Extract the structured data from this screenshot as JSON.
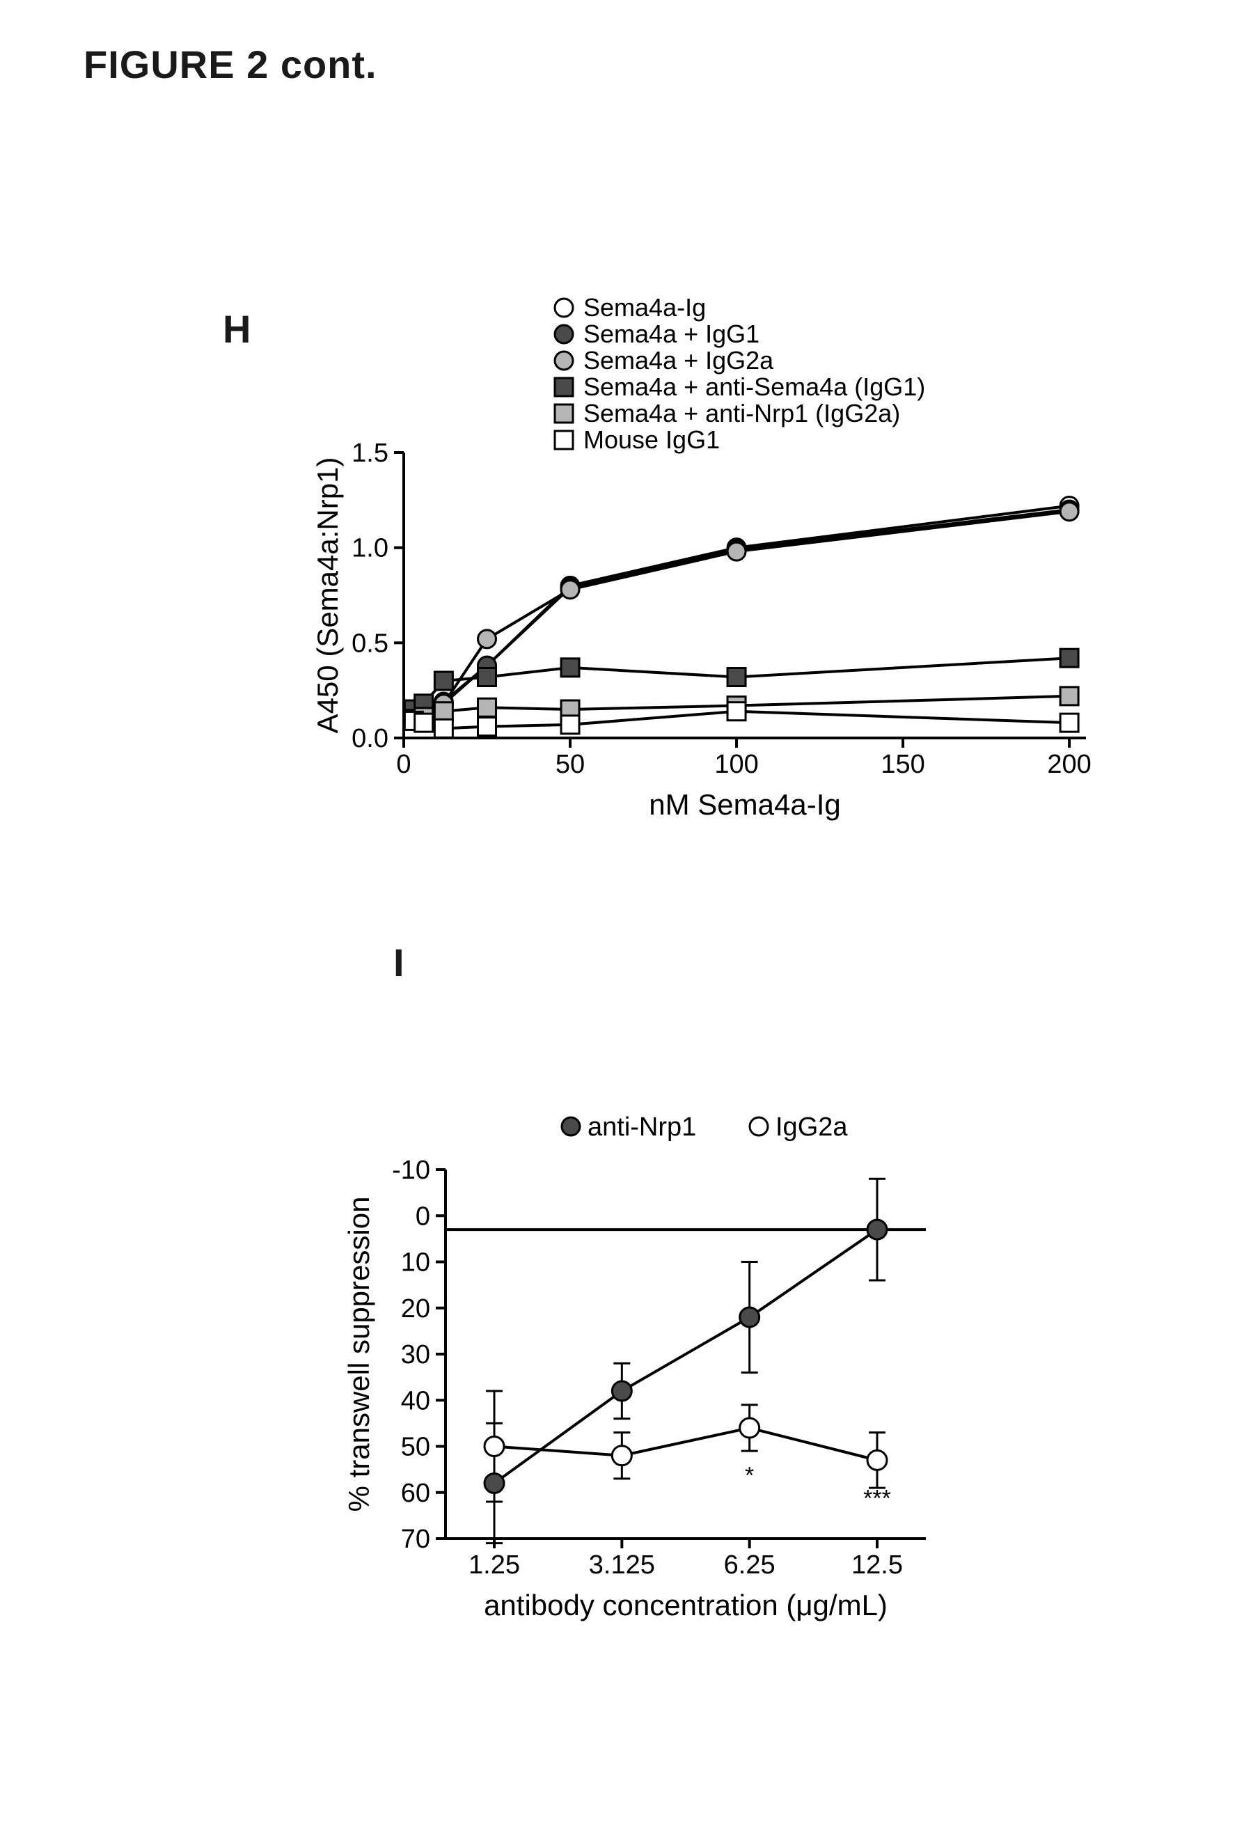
{
  "title": "FIGURE 2 cont.",
  "panelH": {
    "letter": "H",
    "ylabel": "A450 (Sema4a:Nrp1)",
    "xlabel": "nM Sema4a-Ig",
    "xlim": [
      0,
      205
    ],
    "ylim": [
      0,
      1.5
    ],
    "xticks": [
      0,
      50,
      100,
      150,
      200
    ],
    "yticks": [
      0.0,
      0.5,
      1.0,
      1.5
    ],
    "ytick_labels": [
      "0.0",
      "0.5",
      "1.0",
      "1.5"
    ],
    "axis_color": "#000000",
    "line_width": 4,
    "marker_size": 13,
    "font_size_axis": 38,
    "font_size_label": 42,
    "font_size_legend": 36,
    "x_values": [
      3,
      6,
      12,
      25,
      50,
      100,
      200
    ],
    "legend": [
      {
        "label": "Sema4a-Ig",
        "marker": "circle",
        "fill": "#ffffff",
        "stroke": "#000000"
      },
      {
        "label": "Sema4a + IgG1",
        "marker": "circle",
        "fill": "#4a4a4a",
        "stroke": "#000000"
      },
      {
        "label": "Sema4a + IgG2a",
        "marker": "circle",
        "fill": "#b5b5b5",
        "stroke": "#000000"
      },
      {
        "label": "Sema4a + anti-Sema4a (IgG1)",
        "marker": "square",
        "fill": "#4a4a4a",
        "stroke": "#000000"
      },
      {
        "label": "Sema4a + anti-Nrp1  (IgG2a)",
        "marker": "square",
        "fill": "#b5b5b5",
        "stroke": "#000000"
      },
      {
        "label": "Mouse IgG1",
        "marker": "square",
        "fill": "#ffffff",
        "stroke": "#000000"
      }
    ],
    "series": [
      {
        "name": "Sema4a-Ig",
        "marker": "circle",
        "fill": "#ffffff",
        "stroke": "#000000",
        "y": [
          0.1,
          0.12,
          0.18,
          0.38,
          0.8,
          1.0,
          1.22
        ]
      },
      {
        "name": "Sema4a+IgG1",
        "marker": "circle",
        "fill": "#4a4a4a",
        "stroke": "#000000",
        "y": [
          0.1,
          0.13,
          0.19,
          0.38,
          0.79,
          0.99,
          1.2
        ]
      },
      {
        "name": "Sema4a+IgG2a",
        "marker": "circle",
        "fill": "#b5b5b5",
        "stroke": "#000000",
        "y": [
          0.09,
          0.12,
          0.18,
          0.52,
          0.78,
          0.98,
          1.19
        ]
      },
      {
        "name": "anti-Sema4a",
        "marker": "square",
        "fill": "#4a4a4a",
        "stroke": "#000000",
        "y": [
          0.15,
          0.18,
          0.3,
          0.32,
          0.37,
          0.32,
          0.42
        ]
      },
      {
        "name": "anti-Nrp1",
        "marker": "square",
        "fill": "#b5b5b5",
        "stroke": "#000000",
        "y": [
          0.1,
          0.11,
          0.14,
          0.16,
          0.15,
          0.17,
          0.22
        ]
      },
      {
        "name": "Mouse IgG1",
        "marker": "square",
        "fill": "#ffffff",
        "stroke": "#000000",
        "y": [
          0.09,
          0.08,
          0.05,
          0.06,
          0.07,
          0.14,
          0.08
        ]
      }
    ]
  },
  "panelI": {
    "letter": "I",
    "ylabel": "% transwell suppression",
    "xlabel": "antibody concentration  (μg/mL)",
    "y_reversed": true,
    "ylim_top": -10,
    "ylim_bottom": 70,
    "yticks": [
      -10,
      0,
      10,
      20,
      30,
      40,
      50,
      60,
      70
    ],
    "xtick_labels": [
      "1.25",
      "3.125",
      "6.25",
      "12.5"
    ],
    "axis_color": "#000000",
    "line_width": 4,
    "marker_size": 14,
    "err_cap": 12,
    "font_size_axis": 38,
    "font_size_label": 42,
    "font_size_legend": 38,
    "zero_line": 3,
    "legend": [
      {
        "label": "anti-Nrp1",
        "marker": "circle",
        "fill": "#4a4a4a",
        "stroke": "#000000"
      },
      {
        "label": "IgG2a",
        "marker": "circle",
        "fill": "#ffffff",
        "stroke": "#000000"
      }
    ],
    "series": [
      {
        "name": "anti-Nrp1",
        "fill": "#4a4a4a",
        "stroke": "#000000",
        "y": [
          58,
          38,
          22,
          3
        ],
        "err": [
          13,
          6,
          12,
          11
        ]
      },
      {
        "name": "IgG2a",
        "fill": "#ffffff",
        "stroke": "#000000",
        "y": [
          50,
          52,
          46,
          53
        ],
        "err": [
          12,
          5,
          5,
          6
        ]
      }
    ],
    "annotations": [
      {
        "x_index": 2,
        "y": 58,
        "text": "*"
      },
      {
        "x_index": 3,
        "y": 63,
        "text": "***"
      }
    ]
  }
}
